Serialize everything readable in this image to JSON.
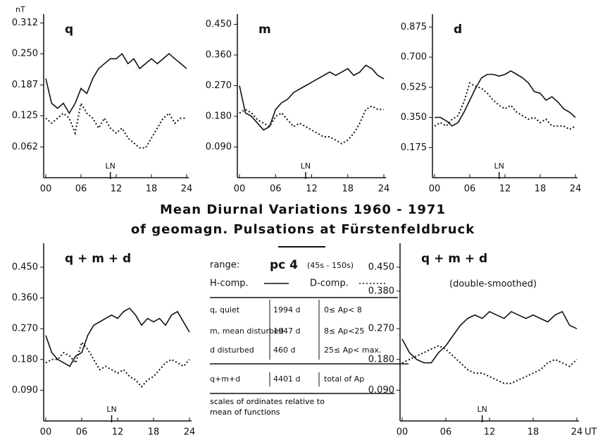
{
  "chart_data": [
    {
      "type": "line",
      "title": "q",
      "ylabel": "nT",
      "annotation": "LN",
      "annotation_x": 11,
      "x": [
        0,
        1,
        2,
        3,
        4,
        5,
        6,
        7,
        8,
        9,
        10,
        11,
        12,
        13,
        14,
        15,
        16,
        17,
        18,
        19,
        20,
        21,
        22,
        23,
        24
      ],
      "xlim": [
        0,
        24
      ],
      "xticks": [
        {
          "value": 0,
          "label": "00"
        },
        {
          "value": 6,
          "label": "06"
        },
        12,
        18,
        24
      ],
      "ylim": [
        0,
        0.33
      ],
      "yticks": [
        0.062,
        0.125,
        0.187,
        {
          "value": 0.25,
          "label": "0.250"
        },
        0.312
      ],
      "series": [
        {
          "color": "#111111",
          "dash": "solid",
          "values": [
            0.2,
            0.15,
            0.14,
            0.15,
            0.13,
            0.15,
            0.18,
            0.17,
            0.2,
            0.22,
            0.23,
            0.24,
            0.24,
            0.25,
            0.23,
            0.24,
            0.22,
            0.23,
            0.24,
            0.23,
            0.24,
            0.25,
            0.24,
            0.23,
            0.22
          ]
        },
        {
          "color": "#111111",
          "dash": "dotted",
          "values": [
            0.12,
            0.11,
            0.12,
            0.13,
            0.12,
            0.09,
            0.15,
            0.13,
            0.12,
            0.1,
            0.12,
            0.1,
            0.09,
            0.1,
            0.08,
            0.07,
            0.06,
            0.06,
            0.08,
            0.1,
            0.12,
            0.13,
            0.11,
            0.12,
            0.12
          ]
        }
      ]
    },
    {
      "type": "line",
      "title": "m",
      "annotation": "LN",
      "annotation_x": 11,
      "x": [
        0,
        1,
        2,
        3,
        4,
        5,
        6,
        7,
        8,
        9,
        10,
        11,
        12,
        13,
        14,
        15,
        16,
        17,
        18,
        19,
        20,
        21,
        22,
        23,
        24
      ],
      "xlim": [
        0,
        24
      ],
      "xticks": [
        {
          "value": 0,
          "label": "00"
        },
        {
          "value": 6,
          "label": "06"
        },
        12,
        18,
        24
      ],
      "ylim": [
        0,
        0.48
      ],
      "yticks": [
        {
          "value": 0.09,
          "label": "0.090"
        },
        {
          "value": 0.18,
          "label": "0.180"
        },
        {
          "value": 0.27,
          "label": "0.270"
        },
        {
          "value": 0.36,
          "label": "0.360"
        },
        {
          "value": 0.45,
          "label": "0.450"
        }
      ],
      "series": [
        {
          "color": "#111111",
          "dash": "solid",
          "values": [
            0.27,
            0.19,
            0.18,
            0.16,
            0.14,
            0.15,
            0.2,
            0.22,
            0.23,
            0.25,
            0.26,
            0.27,
            0.28,
            0.29,
            0.3,
            0.31,
            0.3,
            0.31,
            0.32,
            0.3,
            0.31,
            0.33,
            0.32,
            0.3,
            0.29
          ]
        },
        {
          "color": "#111111",
          "dash": "dotted",
          "values": [
            0.19,
            0.2,
            0.19,
            0.17,
            0.16,
            0.15,
            0.18,
            0.19,
            0.17,
            0.15,
            0.16,
            0.15,
            0.14,
            0.13,
            0.12,
            0.12,
            0.11,
            0.1,
            0.11,
            0.13,
            0.16,
            0.2,
            0.21,
            0.2,
            0.2
          ]
        }
      ]
    },
    {
      "type": "line",
      "title": "d",
      "annotation": "LN",
      "annotation_x": 11,
      "x": [
        0,
        1,
        2,
        3,
        4,
        5,
        6,
        7,
        8,
        9,
        10,
        11,
        12,
        13,
        14,
        15,
        16,
        17,
        18,
        19,
        20,
        21,
        22,
        23,
        24
      ],
      "xlim": [
        0,
        24
      ],
      "xticks": [
        {
          "value": 0,
          "label": "00"
        },
        {
          "value": 6,
          "label": "06"
        },
        12,
        18,
        24
      ],
      "ylim": [
        0,
        0.95
      ],
      "yticks": [
        0.175,
        {
          "value": 0.35,
          "label": "0.350"
        },
        0.525,
        {
          "value": 0.7,
          "label": "0.700"
        },
        0.875
      ],
      "series": [
        {
          "color": "#111111",
          "dash": "solid",
          "values": [
            0.35,
            0.35,
            0.33,
            0.3,
            0.32,
            0.38,
            0.45,
            0.52,
            0.58,
            0.6,
            0.6,
            0.59,
            0.6,
            0.62,
            0.6,
            0.58,
            0.55,
            0.5,
            0.49,
            0.45,
            0.47,
            0.44,
            0.4,
            0.38,
            0.35
          ]
        },
        {
          "color": "#111111",
          "dash": "dotted",
          "values": [
            0.3,
            0.32,
            0.3,
            0.34,
            0.36,
            0.44,
            0.55,
            0.53,
            0.52,
            0.49,
            0.45,
            0.42,
            0.4,
            0.42,
            0.38,
            0.36,
            0.34,
            0.35,
            0.32,
            0.34,
            0.3,
            0.3,
            0.3,
            0.28,
            0.3
          ]
        }
      ]
    },
    {
      "type": "line",
      "title": "q + m + d",
      "annotation": "LN",
      "annotation_x": 11,
      "x": [
        0,
        1,
        2,
        3,
        4,
        5,
        6,
        7,
        8,
        9,
        10,
        11,
        12,
        13,
        14,
        15,
        16,
        17,
        18,
        19,
        20,
        21,
        22,
        23,
        24
      ],
      "xlim": [
        0,
        24
      ],
      "xticks": [
        {
          "value": 0,
          "label": "00"
        },
        {
          "value": 6,
          "label": "06"
        },
        12,
        18,
        24
      ],
      "ylim": [
        0,
        0.52
      ],
      "yticks": [
        {
          "value": 0.09,
          "label": "0.090"
        },
        {
          "value": 0.18,
          "label": "0.180"
        },
        {
          "value": 0.27,
          "label": "0.270"
        },
        {
          "value": 0.36,
          "label": "0.360"
        },
        {
          "value": 0.45,
          "label": "0.450"
        }
      ],
      "series": [
        {
          "color": "#111111",
          "dash": "solid",
          "values": [
            0.25,
            0.2,
            0.18,
            0.17,
            0.16,
            0.19,
            0.2,
            0.25,
            0.28,
            0.29,
            0.3,
            0.31,
            0.3,
            0.32,
            0.33,
            0.31,
            0.28,
            0.3,
            0.29,
            0.3,
            0.28,
            0.31,
            0.32,
            0.29,
            0.26
          ]
        },
        {
          "color": "#111111",
          "dash": "dotted",
          "values": [
            0.17,
            0.18,
            0.18,
            0.2,
            0.19,
            0.17,
            0.23,
            0.21,
            0.18,
            0.15,
            0.16,
            0.15,
            0.14,
            0.15,
            0.13,
            0.12,
            0.1,
            0.12,
            0.13,
            0.15,
            0.17,
            0.18,
            0.17,
            0.16,
            0.18
          ]
        }
      ]
    },
    {
      "type": "line",
      "title": "q + m + d",
      "subtitle": "(double-smoothed)",
      "xlabel": "UT",
      "annotation": "LN",
      "annotation_x": 11,
      "x": [
        0,
        1,
        2,
        3,
        4,
        5,
        6,
        7,
        8,
        9,
        10,
        11,
        12,
        13,
        14,
        15,
        16,
        17,
        18,
        19,
        20,
        21,
        22,
        23,
        24
      ],
      "xlim": [
        0,
        24
      ],
      "xticks": [
        {
          "value": 0,
          "label": "00"
        },
        {
          "value": 6,
          "label": "06"
        },
        12,
        18,
        24
      ],
      "ylim": [
        0,
        0.52
      ],
      "yticks": [
        {
          "value": 0.09,
          "label": "0.090"
        },
        {
          "value": 0.18,
          "label": "0.180"
        },
        {
          "value": 0.27,
          "label": "0.270"
        },
        {
          "value": 0.38,
          "label": "0.380"
        },
        {
          "value": 0.45,
          "label": "0.450"
        }
      ],
      "series": [
        {
          "color": "#111111",
          "dash": "solid",
          "values": [
            0.24,
            0.2,
            0.18,
            0.17,
            0.17,
            0.2,
            0.22,
            0.25,
            0.28,
            0.3,
            0.31,
            0.3,
            0.32,
            0.31,
            0.3,
            0.32,
            0.31,
            0.3,
            0.31,
            0.3,
            0.29,
            0.31,
            0.32,
            0.28,
            0.27
          ]
        },
        {
          "color": "#111111",
          "dash": "dotted",
          "values": [
            0.17,
            0.18,
            0.19,
            0.2,
            0.21,
            0.22,
            0.21,
            0.19,
            0.17,
            0.15,
            0.14,
            0.14,
            0.13,
            0.12,
            0.11,
            0.11,
            0.12,
            0.13,
            0.14,
            0.15,
            0.17,
            0.18,
            0.17,
            0.16,
            0.18
          ]
        }
      ]
    }
  ],
  "heading": {
    "line1": "Mean Diurnal Variations   1960 - 1971",
    "line2": "of geomagn. Pulsations at Fürstenfeldbruck"
  },
  "info": {
    "range_label": "range:",
    "range_value": "pc 4",
    "range_period": "(45s - 150s)",
    "h_comp": "H-comp.",
    "d_comp": "D-comp.",
    "rows": [
      [
        "q, quiet",
        "1994 d",
        "0≤ Ap< 8"
      ],
      [
        "m, mean disturbed",
        "1947 d",
        "8≤ Ap<25"
      ],
      [
        "d disturbed",
        "460 d",
        "25≤ Ap< max."
      ]
    ],
    "total": [
      "q+m+d",
      "4401 d",
      "total of Ap"
    ],
    "note": "scales of ordinates relative to mean of functions"
  }
}
